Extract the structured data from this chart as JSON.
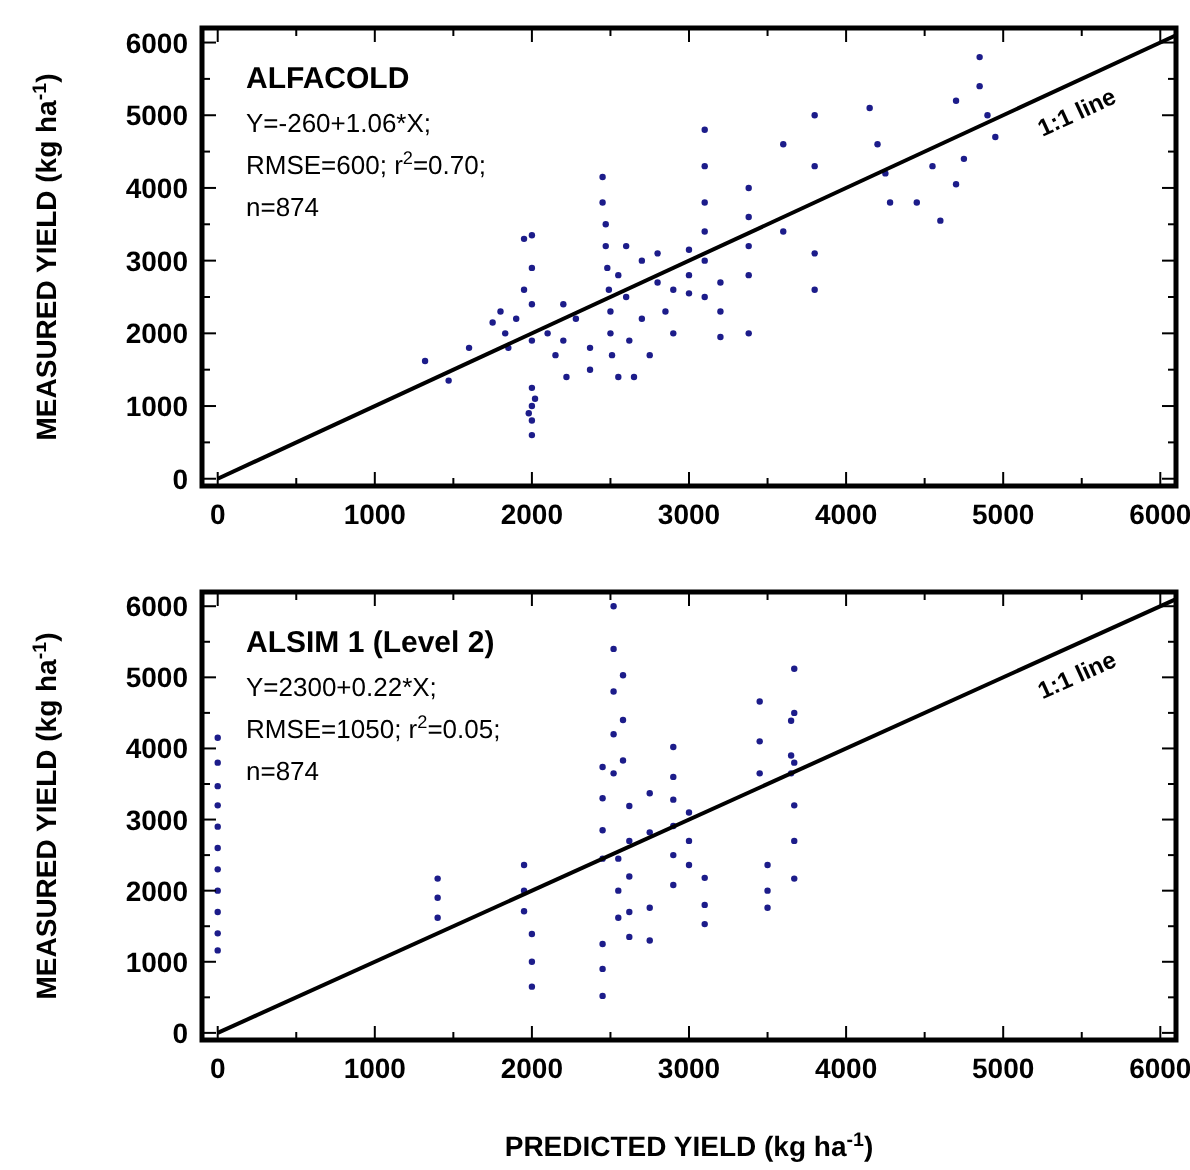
{
  "chart_data": [
    {
      "type": "scatter",
      "title": "ALFACOLD",
      "annotations": [
        "Y=-260+1.06*X;",
        "RMSE=600; r$^{2}$=0.70;",
        "n=874"
      ],
      "ylabel": "MEASURED YIELD (kg ha$^{-1}$)",
      "xlim": [
        -100,
        6100
      ],
      "ylim": [
        -100,
        6200
      ],
      "xticks": [
        0,
        {
          "value": 500,
          "label": null
        },
        1000,
        {
          "value": 1500,
          "label": null
        },
        2000,
        {
          "value": 2500,
          "label": null
        },
        3000,
        {
          "value": 3500,
          "label": null
        },
        4000,
        {
          "value": 4500,
          "label": null
        },
        5000,
        {
          "value": 5500,
          "label": null
        },
        6000
      ],
      "yticks": [
        0,
        {
          "value": 500,
          "label": null
        },
        1000,
        {
          "value": 1500,
          "label": null
        },
        2000,
        {
          "value": 2500,
          "label": null
        },
        3000,
        {
          "value": 3500,
          "label": null
        },
        4000,
        {
          "value": 4500,
          "label": null
        },
        5000,
        {
          "value": 5500,
          "label": null
        },
        6000
      ],
      "grid": false,
      "series": [
        {
          "marker": "circle",
          "color": "#1c1c8a",
          "x": [
            1320,
            1470,
            1600,
            1750,
            1800,
            1830,
            1850,
            1900,
            1950,
            1950,
            2000,
            2000,
            2000,
            2000,
            2000,
            2000,
            2000,
            2000,
            2020,
            1980,
            2100,
            2150,
            2200,
            2200,
            2220,
            2280,
            2370,
            2370,
            2450,
            2450,
            2470,
            2470,
            2480,
            2490,
            2500,
            2500,
            2510,
            2550,
            2600,
            2600,
            2620,
            2650,
            2700,
            2700,
            2750,
            2800,
            2800,
            2850,
            2900,
            3000,
            3000,
            3000,
            3100,
            3100,
            3100,
            3100,
            3100,
            3100,
            3200,
            3200,
            3200,
            3380,
            3380,
            3380,
            3380,
            3380,
            3600,
            3800,
            3800,
            3800,
            3800,
            4150,
            4200,
            4250,
            4280,
            4450,
            4550,
            4600,
            4700,
            4750,
            4850,
            4850,
            4900,
            4950,
            4700,
            3600,
            2900,
            2550
          ],
          "values": [
            1620,
            1350,
            1800,
            2150,
            2300,
            2000,
            1800,
            2200,
            3300,
            2600,
            3350,
            2900,
            2400,
            1900,
            1250,
            1000,
            800,
            600,
            1100,
            900,
            2000,
            1700,
            2400,
            1900,
            1400,
            2200,
            1800,
            1500,
            4150,
            3800,
            3500,
            3200,
            2900,
            2600,
            2300,
            2000,
            1700,
            2800,
            3200,
            2500,
            1900,
            1400,
            3000,
            2200,
            1700,
            3100,
            2700,
            2300,
            2000,
            3150,
            2800,
            2550,
            4800,
            4300,
            3800,
            3400,
            3000,
            2500,
            2700,
            2300,
            1950,
            4000,
            3600,
            3200,
            2800,
            2000,
            3400,
            5000,
            4300,
            3100,
            2600,
            5100,
            4600,
            4200,
            3800,
            3800,
            4300,
            3550,
            4050,
            4400,
            5800,
            5400,
            5000,
            4700,
            5200,
            4600,
            2600,
            1400
          ]
        },
        {
          "type": "line",
          "name": "1:1 line",
          "color": "#000000",
          "line_style": "solid",
          "x": [
            0,
            6100
          ],
          "values": [
            0,
            6100
          ]
        }
      ]
    },
    {
      "type": "scatter",
      "title": "ALSIM 1 (Level 2)",
      "annotations": [
        "Y=2300+0.22*X;",
        "RMSE=1050; r$^{2}$=0.05;",
        "n=874"
      ],
      "ylabel": "MEASURED YIELD (kg ha$^{-1}$)",
      "xlabel": "PREDICTED YIELD  (kg ha$^{-1}$)",
      "xlim": [
        -100,
        6100
      ],
      "ylim": [
        -100,
        6200
      ],
      "xticks": [
        0,
        {
          "value": 500,
          "label": null
        },
        1000,
        {
          "value": 1500,
          "label": null
        },
        2000,
        {
          "value": 2500,
          "label": null
        },
        3000,
        {
          "value": 3500,
          "label": null
        },
        4000,
        {
          "value": 4500,
          "label": null
        },
        5000,
        {
          "value": 5500,
          "label": null
        },
        6000
      ],
      "yticks": [
        0,
        {
          "value": 500,
          "label": null
        },
        1000,
        {
          "value": 1500,
          "label": null
        },
        2000,
        {
          "value": 2500,
          "label": null
        },
        3000,
        {
          "value": 3500,
          "label": null
        },
        4000,
        {
          "value": 4500,
          "label": null
        },
        5000,
        {
          "value": 5500,
          "label": null
        },
        6000
      ],
      "grid": false,
      "series": [
        {
          "marker": "circle",
          "color": "#1c1c8a",
          "x": [
            0,
            0,
            0,
            0,
            0,
            0,
            0,
            0,
            0,
            0,
            0,
            1400,
            1400,
            1400,
            1950,
            1950,
            1950,
            2000,
            2000,
            2000,
            2450,
            2450,
            2450,
            2450,
            2450,
            2450,
            2450,
            2520,
            2520,
            2520,
            2520,
            2520,
            2550,
            2550,
            2550,
            2580,
            2580,
            2580,
            2620,
            2620,
            2620,
            2620,
            2620,
            2750,
            2750,
            2750,
            2750,
            2900,
            2900,
            2900,
            2900,
            2900,
            2900,
            3000,
            3000,
            3000,
            3100,
            3100,
            3100,
            3450,
            3450,
            3450,
            3500,
            3500,
            3500,
            3650,
            3650,
            3650,
            3670,
            3670,
            3670,
            3670,
            3670,
            3670
          ],
          "values": [
            4150,
            3800,
            3470,
            3200,
            2900,
            2600,
            2300,
            2000,
            1700,
            1400,
            1160,
            2170,
            1900,
            1620,
            2360,
            2000,
            1710,
            1390,
            1000,
            650,
            1250,
            900,
            520,
            3740,
            3300,
            2850,
            2450,
            6000,
            5400,
            4800,
            4200,
            3650,
            2450,
            2000,
            1620,
            5030,
            4400,
            3830,
            3190,
            2700,
            2200,
            1700,
            1350,
            3370,
            2820,
            1760,
            1300,
            4020,
            3600,
            3280,
            2910,
            2500,
            2080,
            3100,
            2700,
            2360,
            2180,
            1800,
            1530,
            4660,
            4100,
            3650,
            2360,
            2000,
            1760,
            4390,
            3900,
            3650,
            5120,
            4500,
            3800,
            3200,
            2700,
            2170
          ]
        },
        {
          "type": "line",
          "name": "1:1 line",
          "color": "#000000",
          "line_style": "solid",
          "x": [
            0,
            6100
          ],
          "values": [
            0,
            6100
          ]
        }
      ]
    }
  ]
}
